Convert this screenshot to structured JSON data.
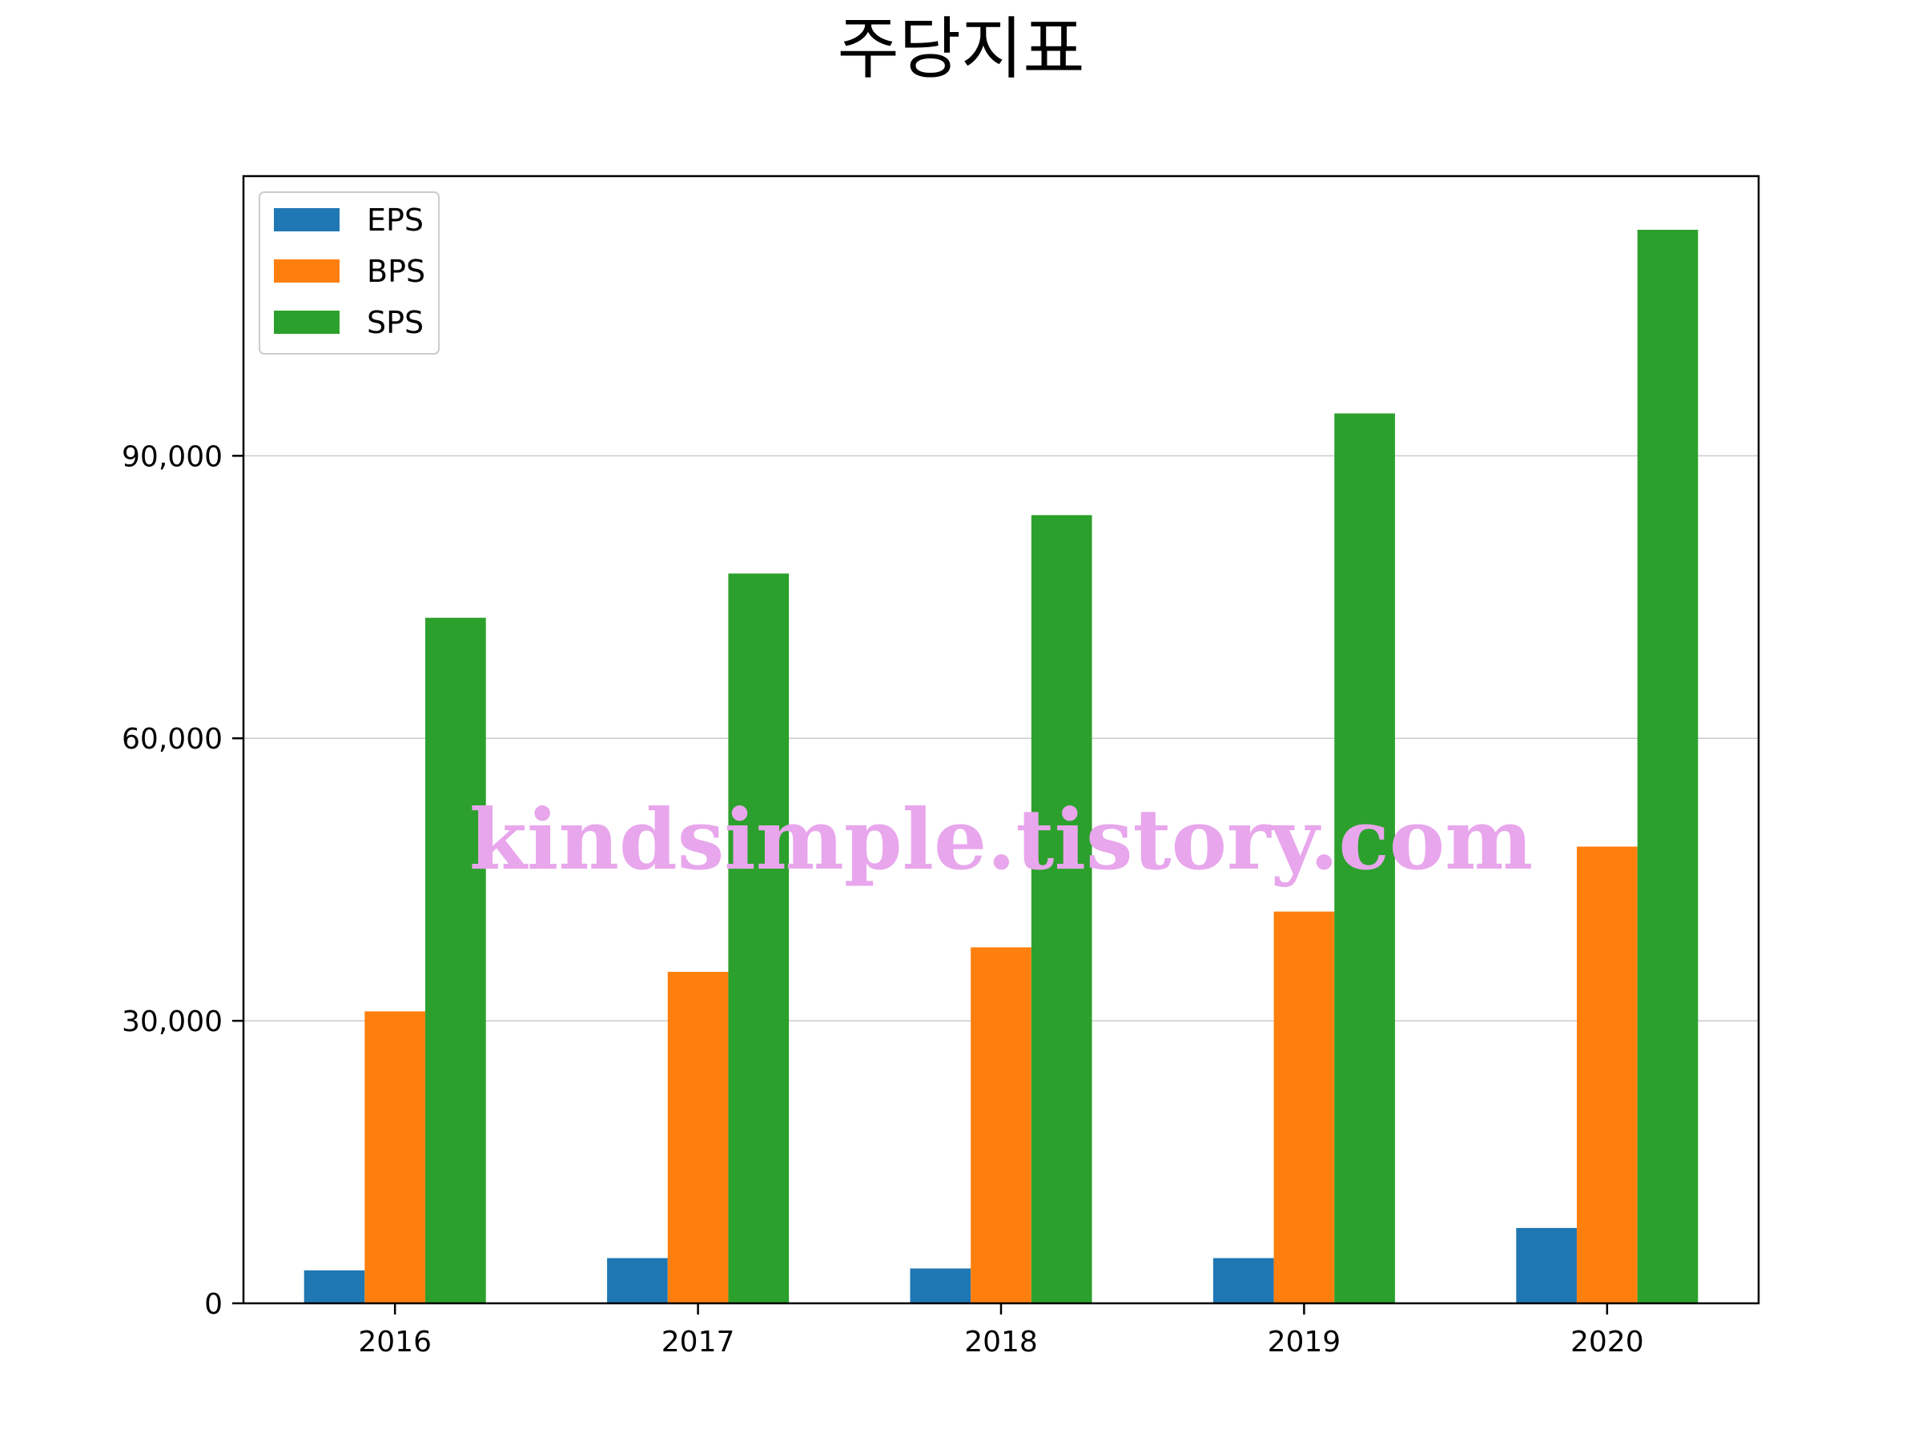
{
  "chart_data": {
    "type": "bar",
    "title": "주당지표",
    "xlabel": "",
    "ylabel": "",
    "categories": [
      "2016",
      "2017",
      "2018",
      "2019",
      "2020"
    ],
    "series": [
      {
        "name": "EPS",
        "values": [
          3500,
          4800,
          3700,
          4800,
          8000
        ],
        "color": "#1f77b4"
      },
      {
        "name": "BPS",
        "values": [
          31000,
          35200,
          37800,
          41600,
          48500
        ],
        "color": "#ff7f0e"
      },
      {
        "name": "SPS",
        "values": [
          72800,
          77500,
          83700,
          94500,
          114000
        ],
        "color": "#2ca02c"
      }
    ],
    "ylim": [
      0,
      119700
    ],
    "yticks": [
      0,
      30000,
      60000,
      90000
    ],
    "ytick_labels": [
      "0",
      "30,000",
      "60,000",
      "90,000"
    ],
    "grid": "y",
    "legend_position": "top-left"
  },
  "watermark": "kindsimple.tistory.com"
}
